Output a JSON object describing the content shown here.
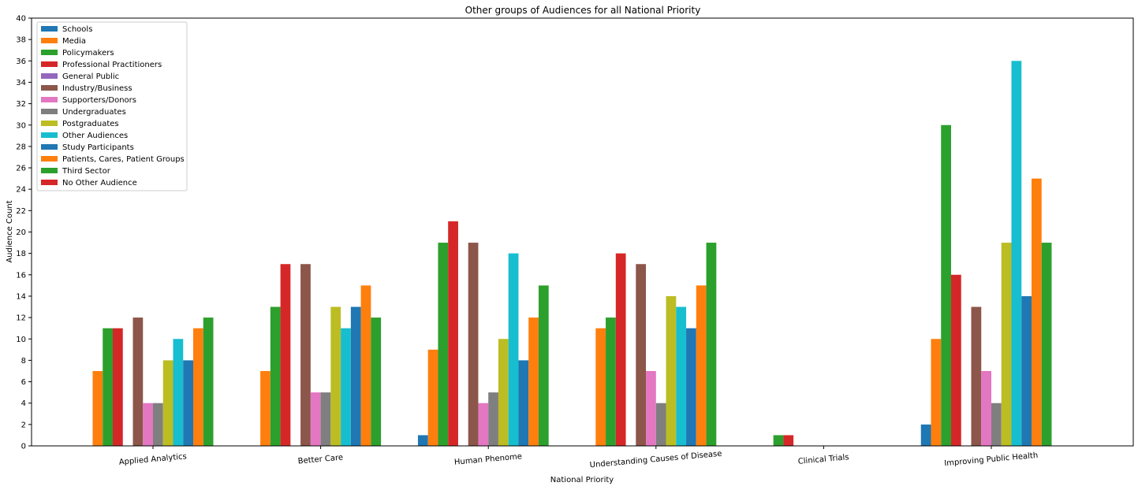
{
  "chart_data": {
    "type": "bar",
    "title": "Other groups of Audiences for all National Priority",
    "xlabel": "National Priority",
    "ylabel": "Audience Count",
    "ylim": [
      0,
      40
    ],
    "yticks": [
      0,
      2,
      4,
      6,
      8,
      10,
      12,
      14,
      16,
      18,
      20,
      22,
      24,
      26,
      28,
      30,
      32,
      34,
      36,
      38,
      40
    ],
    "legend_position": "top-left",
    "grid": false,
    "categories": [
      "Applied Analytics",
      "Better Care",
      "Human Phenome",
      "Understanding Causes of Disease",
      "Clinical Trials",
      "Improving Public Health"
    ],
    "series": [
      {
        "name": "Schools",
        "color": "#1f77b4",
        "values": [
          0,
          0,
          1,
          0,
          0,
          2
        ]
      },
      {
        "name": "Media",
        "color": "#ff7f0e",
        "values": [
          7,
          7,
          9,
          11,
          0,
          10
        ]
      },
      {
        "name": "Policymakers",
        "color": "#2ca02c",
        "values": [
          11,
          13,
          19,
          12,
          1,
          30
        ]
      },
      {
        "name": "Professional Practitioners",
        "color": "#d62728",
        "values": [
          11,
          17,
          21,
          18,
          1,
          16
        ]
      },
      {
        "name": "General Public",
        "color": "#9467bd",
        "values": [
          0,
          0,
          0,
          0,
          0,
          0
        ]
      },
      {
        "name": "Industry/Business",
        "color": "#8c564b",
        "values": [
          12,
          17,
          19,
          17,
          0,
          13
        ]
      },
      {
        "name": "Supporters/Donors",
        "color": "#e377c2",
        "values": [
          4,
          5,
          4,
          7,
          0,
          7
        ]
      },
      {
        "name": "Undergraduates",
        "color": "#7f7f7f",
        "values": [
          4,
          5,
          5,
          4,
          0,
          4
        ]
      },
      {
        "name": "Postgraduates",
        "color": "#bcbd22",
        "values": [
          8,
          13,
          10,
          14,
          0,
          19
        ]
      },
      {
        "name": "Other Audiences",
        "color": "#17becf",
        "values": [
          10,
          11,
          18,
          13,
          0,
          36
        ]
      },
      {
        "name": "Study Participants",
        "color": "#1f77b4",
        "values": [
          8,
          13,
          8,
          11,
          0,
          14
        ]
      },
      {
        "name": "Patients, Cares, Patient Groups",
        "color": "#ff7f0e",
        "values": [
          11,
          15,
          12,
          15,
          0,
          25
        ]
      },
      {
        "name": "Third Sector",
        "color": "#2ca02c",
        "values": [
          12,
          12,
          15,
          19,
          0,
          19
        ]
      },
      {
        "name": "No Other Audience",
        "color": "#d62728",
        "values": [
          0,
          0,
          0,
          0,
          0,
          0
        ]
      }
    ]
  }
}
